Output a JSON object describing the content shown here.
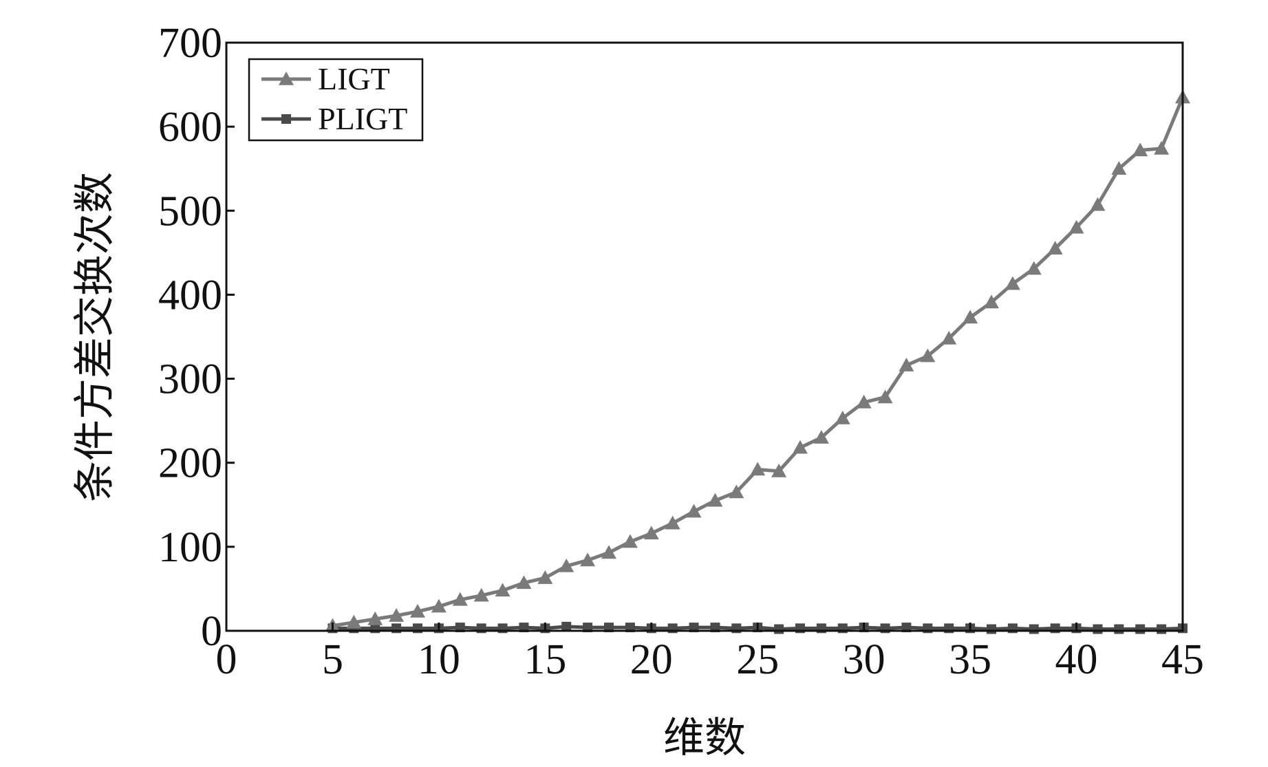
{
  "chart_data": {
    "type": "line",
    "title": "",
    "xlabel": "维数",
    "ylabel": "条件方差交换次数",
    "xlim": [
      0,
      45
    ],
    "ylim": [
      0,
      700
    ],
    "x_ticks": [
      0,
      5,
      10,
      15,
      20,
      25,
      30,
      35,
      40,
      45
    ],
    "y_ticks": [
      0,
      100,
      200,
      300,
      400,
      500,
      600,
      700
    ],
    "grid": false,
    "legend_position": "top-left",
    "x": [
      5,
      6,
      7,
      8,
      9,
      10,
      11,
      12,
      13,
      14,
      15,
      16,
      17,
      18,
      19,
      20,
      21,
      22,
      23,
      24,
      25,
      26,
      27,
      28,
      29,
      30,
      31,
      32,
      33,
      34,
      35,
      36,
      37,
      38,
      39,
      40,
      41,
      42,
      43,
      44,
      45
    ],
    "series": [
      {
        "name": "LIGT",
        "marker": "triangle",
        "color": "#7a7a7a",
        "values": [
          6,
          10,
          14,
          18,
          23,
          29,
          37,
          42,
          48,
          57,
          63,
          77,
          84,
          93,
          106,
          116,
          128,
          142,
          155,
          165,
          192,
          190,
          218,
          230,
          253,
          272,
          278,
          316,
          327,
          348,
          373,
          391,
          413,
          431,
          455,
          480,
          507,
          550,
          572,
          574,
          635
        ]
      },
      {
        "name": "PLIGT",
        "marker": "square",
        "color": "#4a4a4a",
        "values": [
          3,
          3,
          3,
          3,
          3,
          3,
          4,
          3,
          3,
          4,
          3,
          5,
          4,
          4,
          4,
          3,
          3,
          4,
          4,
          3,
          4,
          2,
          3,
          3,
          3,
          4,
          3,
          4,
          3,
          3,
          3,
          2,
          3,
          2,
          3,
          3,
          2,
          2,
          2,
          2,
          3
        ]
      }
    ]
  }
}
